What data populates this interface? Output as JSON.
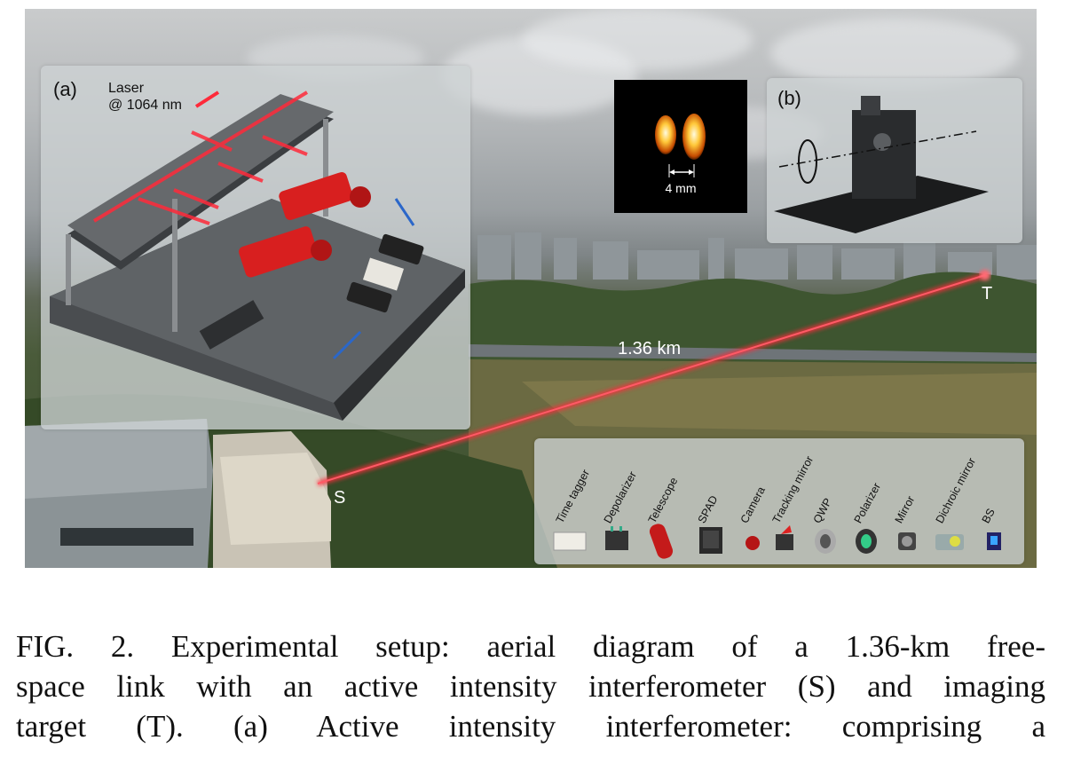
{
  "figure": {
    "panel_a": {
      "letter": "(a)",
      "laser_label_line1": "Laser",
      "laser_label_line2": "@ 1064 nm"
    },
    "panel_b": {
      "letter": "(b)"
    },
    "inset_image": {
      "scale_label": "4 mm"
    },
    "distance_label": "1.36 km",
    "source_label": "S",
    "target_label": "T",
    "legend": [
      {
        "label": "Time tagger",
        "icon": "time-tagger-icon"
      },
      {
        "label": "Depolarizer",
        "icon": "depolarizer-icon"
      },
      {
        "label": "Telescope",
        "icon": "telescope-icon"
      },
      {
        "label": "SPAD",
        "icon": "spad-icon"
      },
      {
        "label": "Camera",
        "icon": "camera-icon"
      },
      {
        "label": "Tracking mirror",
        "icon": "tracking-mirror-icon"
      },
      {
        "label": "QWP",
        "icon": "qwp-icon"
      },
      {
        "label": "Polarizer",
        "icon": "polarizer-icon"
      },
      {
        "label": "Mirror",
        "icon": "mirror-icon"
      },
      {
        "label": "Dichroic mirror",
        "icon": "dichroic-mirror-icon"
      },
      {
        "label": "BS",
        "icon": "bs-icon"
      }
    ],
    "colors": {
      "laser_beam": "#ff2a3a",
      "optic_red": "#d81f1f",
      "legend_bg": "#cfd3d5"
    }
  },
  "caption": {
    "line1": "FIG. 2.    Experimental setup: aerial diagram of a 1.36-km free-",
    "line2": "space link with an active intensity interferometer (S) and imaging",
    "line3": "target (T). (a) Active intensity interferometer: comprising a"
  }
}
